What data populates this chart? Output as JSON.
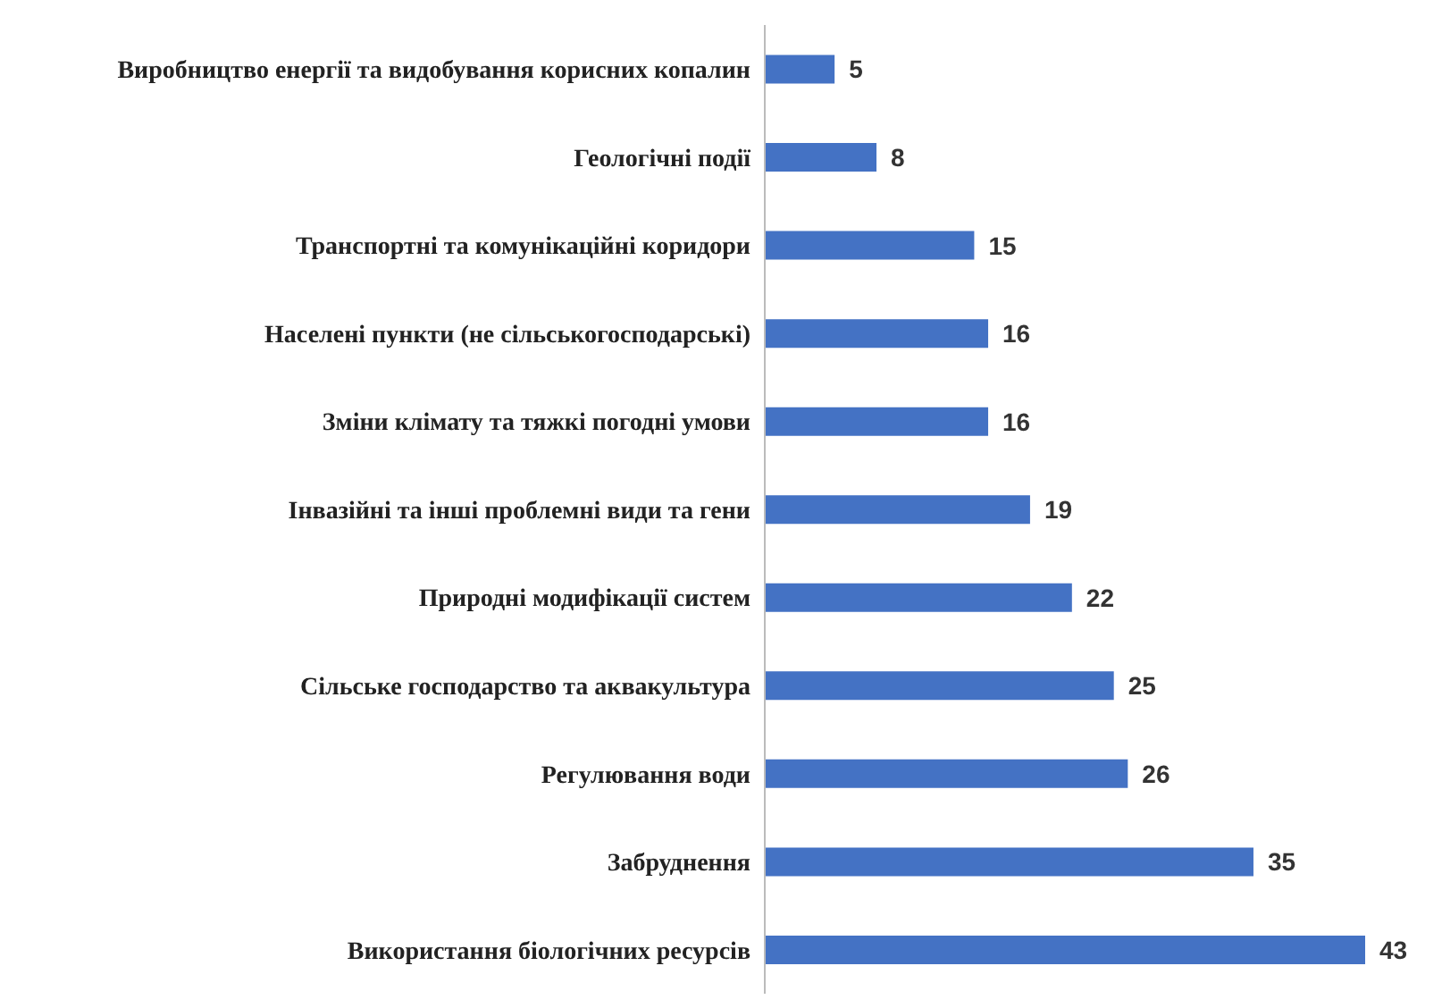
{
  "chart_data": {
    "type": "bar",
    "orientation": "horizontal",
    "categories": [
      "Виробництво енергії та видобування корисних копалин",
      "Геологічні події",
      "Транспортні та комунікаційні коридори",
      "Населені пункти (не сільськогосподарські)",
      "Зміни клімату та тяжкі погодні умови",
      "Інвазійні та інші проблемні види та гени",
      "Природні модифікації систем",
      "Сільське господарство та аквакультура",
      "Регулювання води",
      "Забруднення",
      "Використання біологічних ресурсів"
    ],
    "values": [
      5,
      8,
      15,
      16,
      16,
      19,
      22,
      25,
      26,
      35,
      43
    ],
    "color": "#4472c4",
    "data_labels": true,
    "grid": false,
    "legend": false,
    "tick_labels": "y"
  }
}
